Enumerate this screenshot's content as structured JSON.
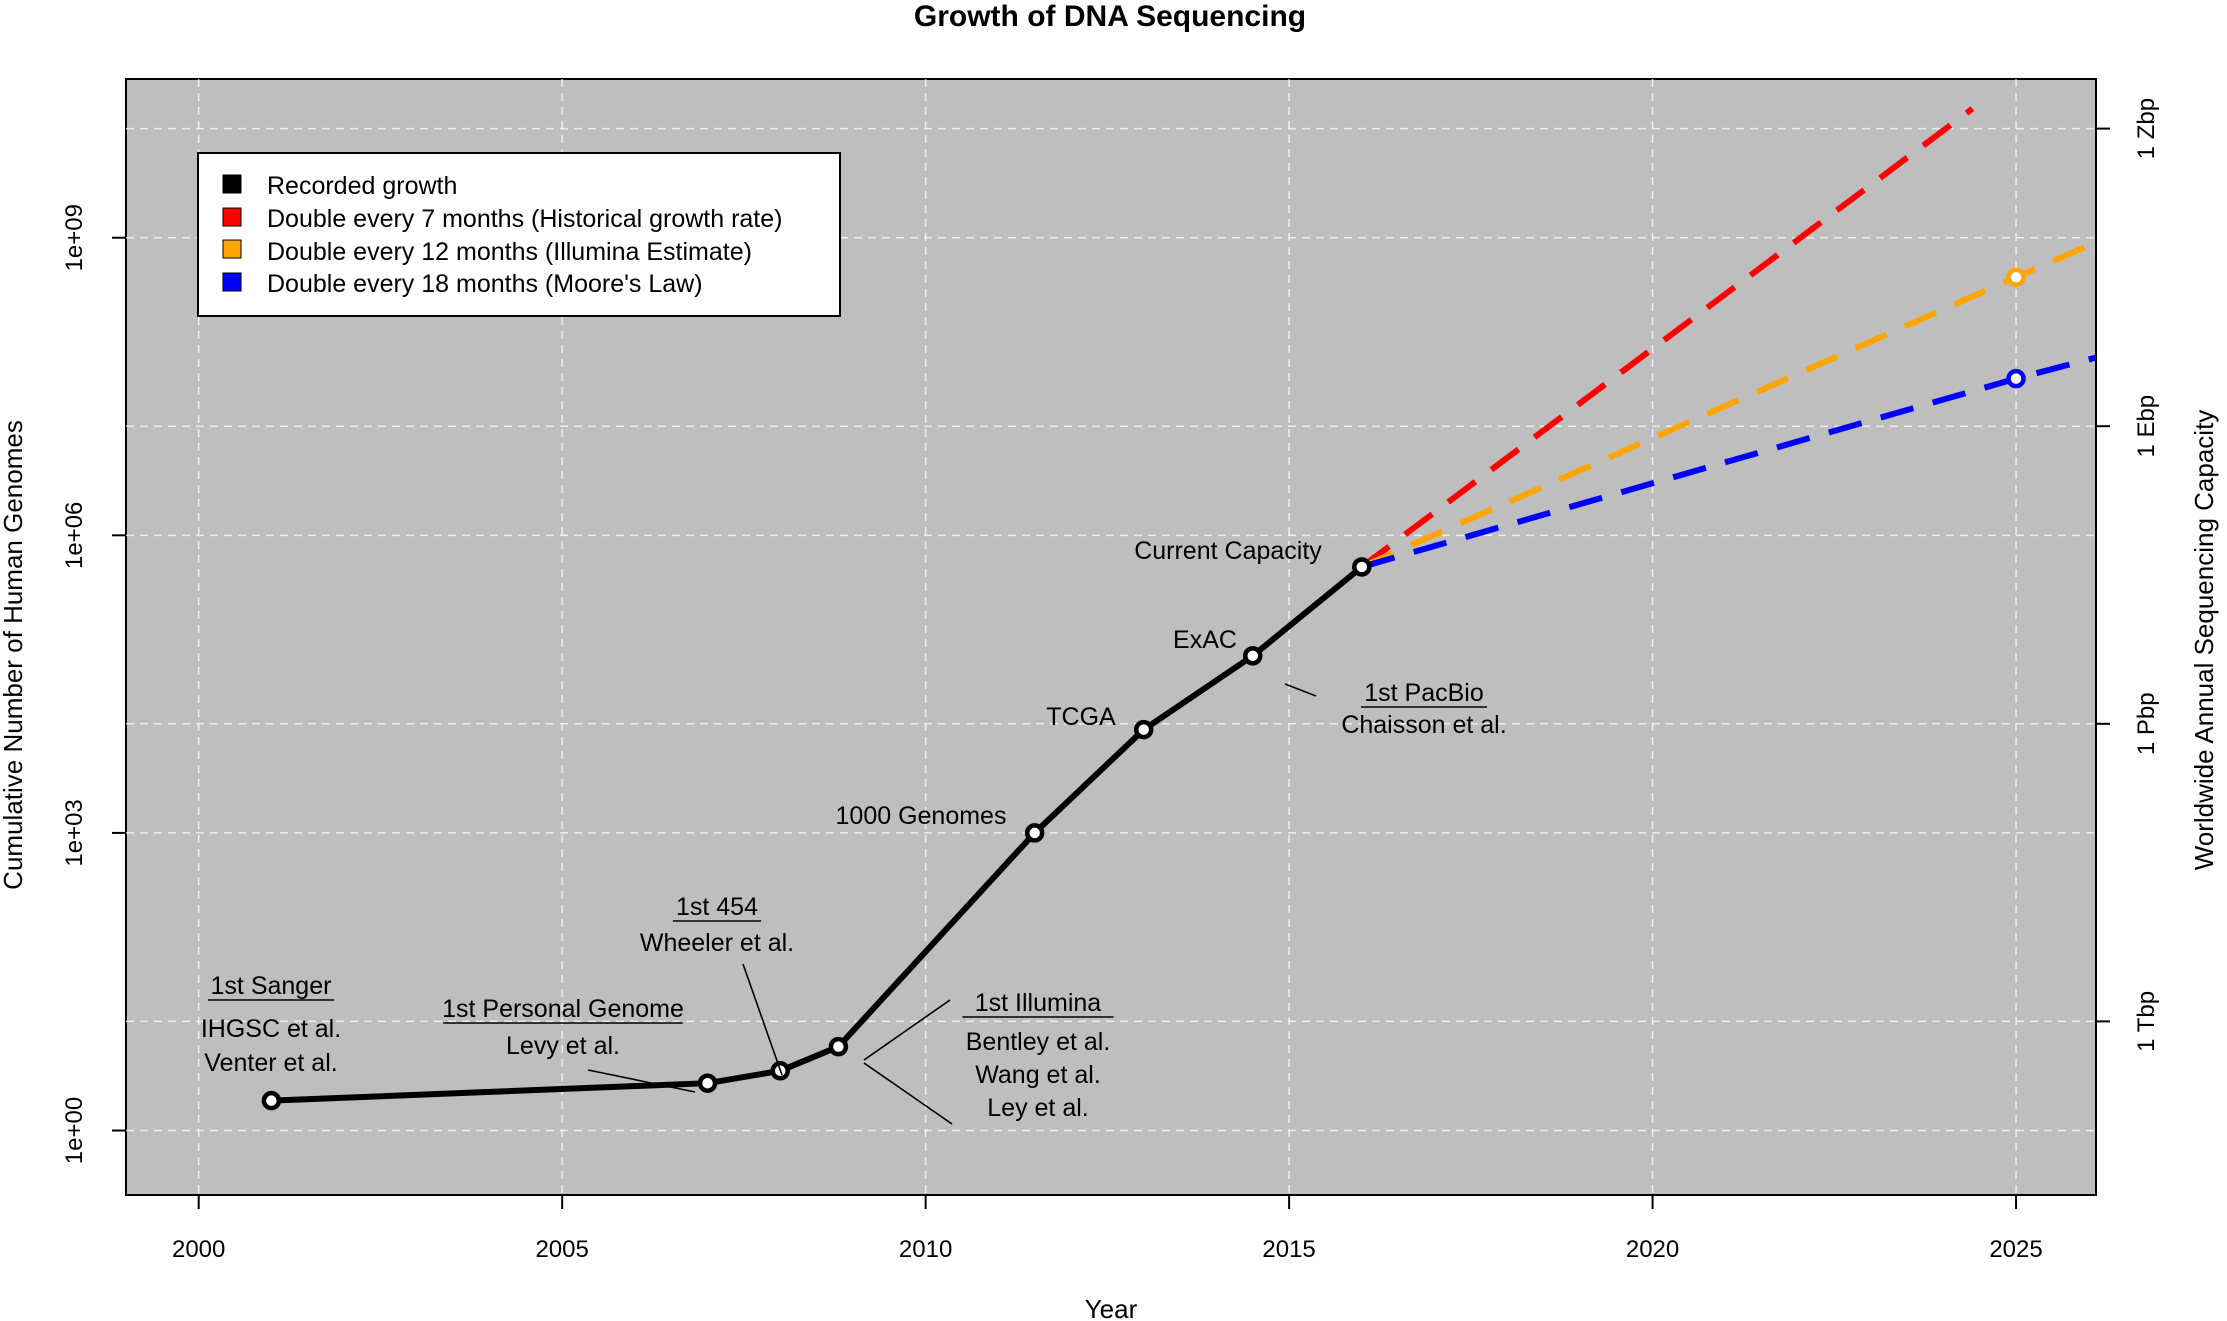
{
  "chart_data": {
    "type": "line",
    "title": "Growth of DNA Sequencing",
    "xlabel": "Year",
    "ylabel": "Cumulative Number of Human Genomes",
    "y2label": "Worldwide Annual Sequencing Capacity",
    "xlim": [
      1999.0,
      2026.1
    ],
    "ylim_log10": [
      -0.65,
      10.6
    ],
    "x_ticks": [
      2000,
      2005,
      2010,
      2015,
      2020,
      2025
    ],
    "y_ticks": [
      {
        "label": "1e+00",
        "log10": 0
      },
      {
        "label": "1e+03",
        "log10": 3
      },
      {
        "label": "1e+06",
        "log10": 6
      },
      {
        "label": "1e+09",
        "log10": 9
      }
    ],
    "y2_ticks": [
      {
        "label": "1 Tbp",
        "log10": 1.1
      },
      {
        "label": "1 Pbp",
        "log10": 4.1
      },
      {
        "label": "1 Ebp",
        "log10": 7.1
      },
      {
        "label": "1 Zbp",
        "log10": 10.1
      }
    ],
    "grid": true,
    "legend_position": "top-left",
    "legend": [
      {
        "label": "Recorded growth",
        "color": "#000000"
      },
      {
        "label": "Double every 7 months (Historical growth rate)",
        "color": "#ff0000"
      },
      {
        "label": "Double every 12 months (Illumina Estimate)",
        "color": "#ffa500"
      },
      {
        "label": "Double every 18 months (Moore's Law)",
        "color": "#0000ff"
      }
    ],
    "series": [
      {
        "name": "Recorded growth",
        "color": "#000000",
        "style": "solid",
        "points": [
          {
            "year": 2001.0,
            "genomes": 2
          },
          {
            "year": 2007.0,
            "genomes": 3
          },
          {
            "year": 2008.0,
            "genomes": 4
          },
          {
            "year": 2008.8,
            "genomes": 7
          },
          {
            "year": 2011.5,
            "genomes": 1000
          },
          {
            "year": 2013.0,
            "genomes": 11000
          },
          {
            "year": 2014.5,
            "genomes": 61000
          },
          {
            "year": 2016.0,
            "genomes": 480000
          }
        ]
      },
      {
        "name": "Double every 7 months (Historical growth rate)",
        "color": "#ff0000",
        "style": "dashed",
        "points": [
          {
            "year": 2016.0,
            "genomes": 480000
          },
          {
            "year": 2024.4,
            "genomes": 20000000000
          }
        ]
      },
      {
        "name": "Double every 12 months (Illumina Estimate)",
        "color": "#ffa500",
        "style": "dashed",
        "points": [
          {
            "year": 2016.0,
            "genomes": 480000
          },
          {
            "year": 2025.0,
            "genomes": 400000000
          },
          {
            "year": 2026.1,
            "genomes": 900000000
          }
        ],
        "marker_at": [
          2025.0
        ]
      },
      {
        "name": "Double every 18 months (Moore's Law)",
        "color": "#0000ff",
        "style": "dashed",
        "points": [
          {
            "year": 2016.0,
            "genomes": 480000
          },
          {
            "year": 2025.0,
            "genomes": 38000000
          },
          {
            "year": 2026.1,
            "genomes": 62000000
          }
        ],
        "marker_at": [
          2025.0
        ]
      }
    ],
    "annotations": [
      {
        "id": "sanger",
        "heading": "1st Sanger",
        "lines": [
          "IHGSC et al.",
          "Venter et al."
        ],
        "year": 2001.0
      },
      {
        "id": "personal",
        "heading": "1st Personal Genome",
        "lines": [
          "Levy et al."
        ],
        "year": 2007.0
      },
      {
        "id": "454",
        "heading": "1st 454",
        "lines": [
          "Wheeler et al."
        ],
        "year": 2008.0
      },
      {
        "id": "illumina",
        "heading": "1st Illumina",
        "lines": [
          "Bentley et al.",
          "Wang et al.",
          "Ley et al."
        ],
        "year": 2008.8
      },
      {
        "id": "1000g",
        "heading": "",
        "lines": [
          "1000 Genomes"
        ],
        "year": 2011.5
      },
      {
        "id": "tcga",
        "heading": "",
        "lines": [
          "TCGA"
        ],
        "year": 2013.0
      },
      {
        "id": "exac",
        "heading": "",
        "lines": [
          "ExAC"
        ],
        "year": 2014.5
      },
      {
        "id": "pacbio",
        "heading": "1st PacBio",
        "lines": [
          "Chaisson et al."
        ],
        "year": 2014.5
      },
      {
        "id": "current",
        "heading": "",
        "lines": [
          "Current Capacity"
        ],
        "year": 2016.0
      }
    ]
  }
}
